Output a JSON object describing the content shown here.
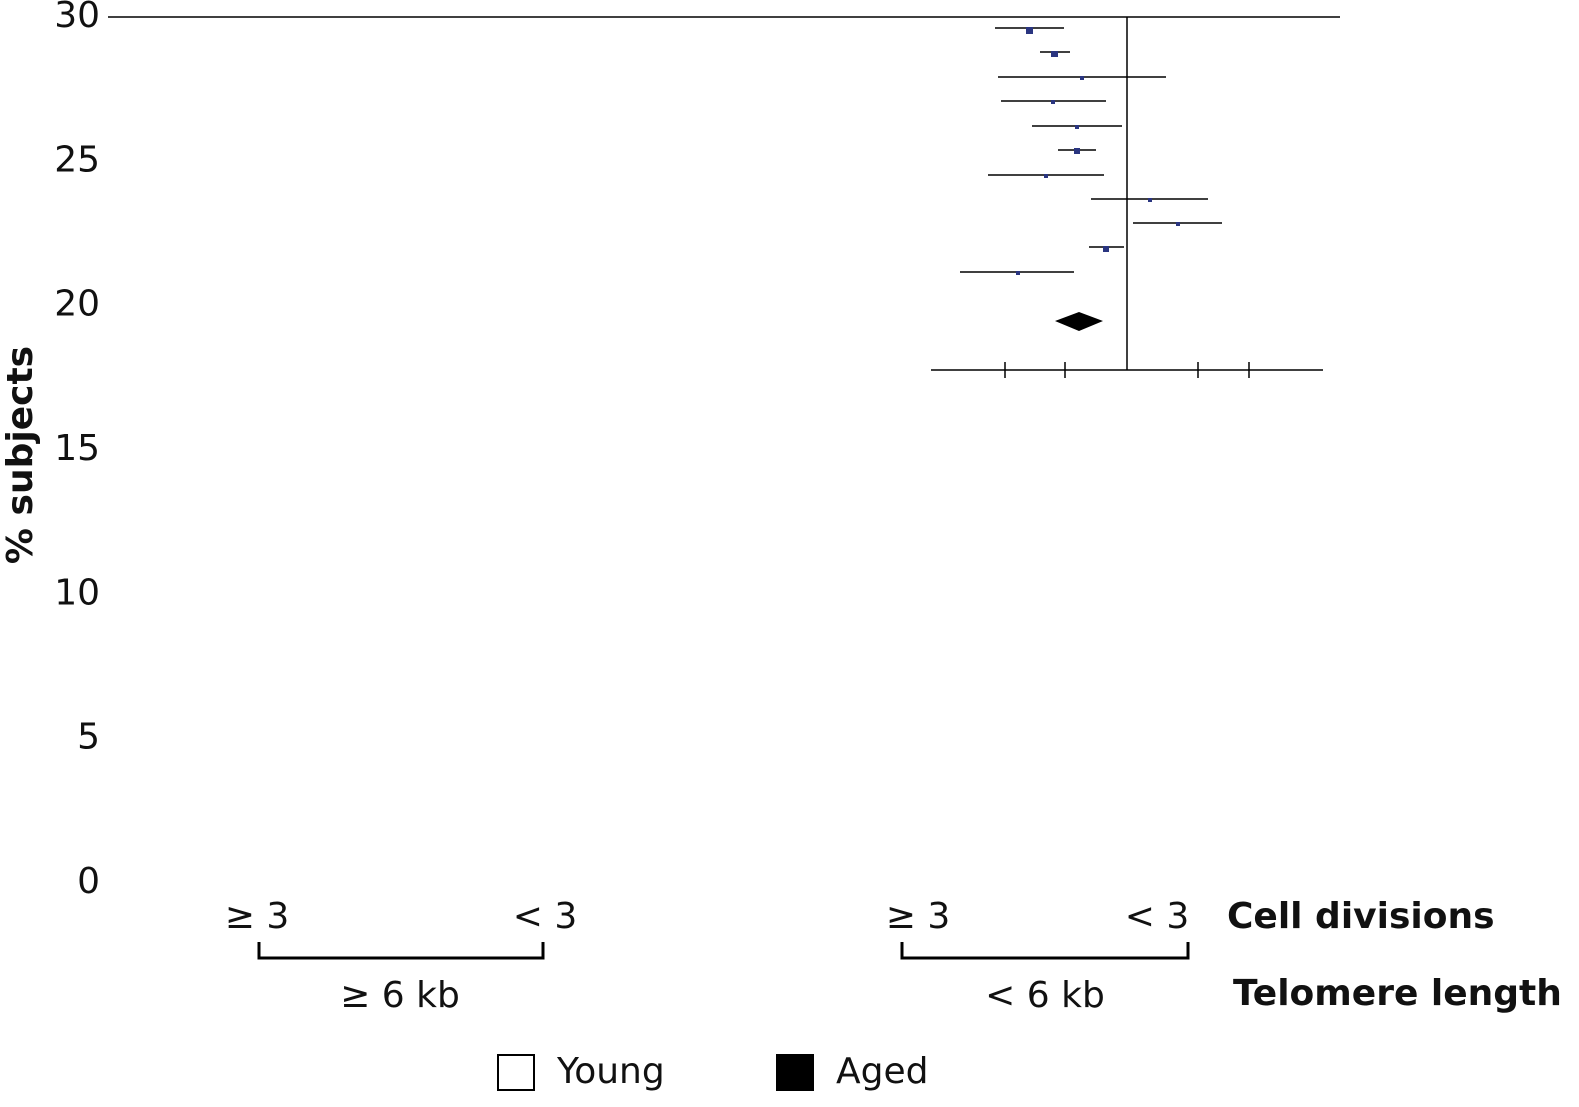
{
  "chart_data": {
    "type": "bar",
    "y_label": "% subjects",
    "ylim": [
      0,
      30
    ],
    "yticks": [
      0,
      5,
      10,
      15,
      20,
      25,
      30
    ],
    "categories": [
      "≥ 3",
      "< 3",
      "≥ 3",
      "< 3"
    ],
    "groups": [
      "≥ 6 kb",
      "< 6 kb"
    ],
    "category_axis_label": "Cell divisions",
    "group_axis_label": "Telomere length",
    "series": [
      {
        "name": "Young",
        "color": "#ffffff",
        "values": [
          null,
          null,
          null,
          null
        ]
      },
      {
        "name": "Aged",
        "color": "#000000",
        "values": [
          null,
          null,
          null,
          null
        ]
      }
    ]
  }
}
